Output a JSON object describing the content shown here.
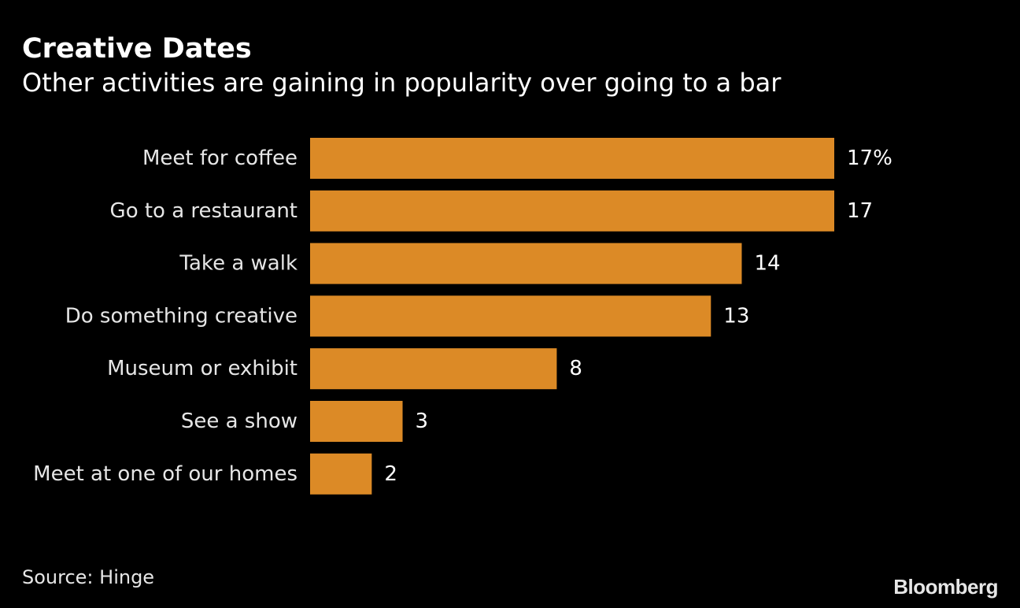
{
  "title": "Creative Dates",
  "subtitle": "Other activities are gaining in popularity over going to a bar",
  "source": "Source: Hinge",
  "brand": "Bloomberg",
  "colors": {
    "background": "#000000",
    "bar": "#dc8a26",
    "text": "#ffffff",
    "label": "#e6e6e6"
  },
  "chart_data": {
    "type": "bar",
    "orientation": "horizontal",
    "title": "Creative Dates",
    "subtitle": "Other activities are gaining in popularity over going to a bar",
    "categories": [
      "Meet for coffee",
      "Go to a restaurant",
      "Take a walk",
      "Do something creative",
      "Museum or exhibit",
      "See a show",
      "Meet at one of our homes"
    ],
    "values": [
      17,
      17,
      14,
      13,
      8,
      3,
      2
    ],
    "value_labels": [
      "17%",
      "17",
      "14",
      "13",
      "8",
      "3",
      "2"
    ],
    "unit": "%",
    "xlim": [
      0,
      17
    ],
    "xlabel": "",
    "ylabel": "",
    "grid": false,
    "legend": "none"
  }
}
